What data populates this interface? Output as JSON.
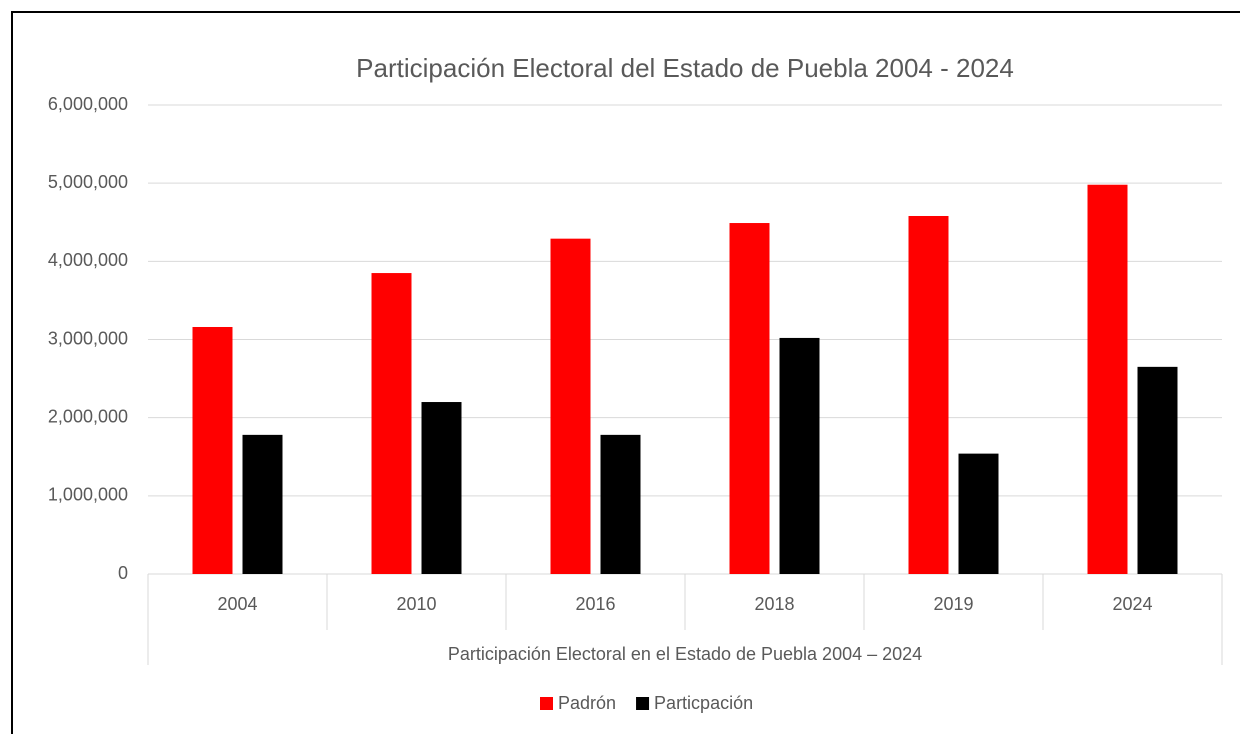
{
  "chart_data": {
    "type": "bar",
    "title": "Participación Electoral del Estado de Puebla 2004 - 2024",
    "xlabel": "Participación Electoral en el Estado de Puebla 2004 – 2024",
    "categories": [
      "2004",
      "2010",
      "2016",
      "2018",
      "2019",
      "2024"
    ],
    "series": [
      {
        "name": "Padrón",
        "color": "#ff0000",
        "values": [
          3160000,
          3850000,
          4290000,
          4490000,
          4580000,
          4980000
        ]
      },
      {
        "name": "Particpación",
        "color": "#000000",
        "values": [
          1780000,
          2200000,
          1780000,
          3020000,
          1540000,
          2650000
        ]
      }
    ],
    "ylim": [
      0,
      6000000
    ],
    "yticks": [
      0,
      {
        "value": 1000000,
        "label": "1,000,000"
      },
      {
        "value": 2000000,
        "label": "2,000,000"
      },
      {
        "value": 3000000,
        "label": "3,000,000"
      },
      {
        "value": 4000000,
        "label": "4,000,000"
      },
      {
        "value": 5000000,
        "label": "5,000,000"
      },
      {
        "value": 6000000,
        "label": "6,000,000"
      }
    ],
    "grid": true,
    "legend": "bottom"
  }
}
